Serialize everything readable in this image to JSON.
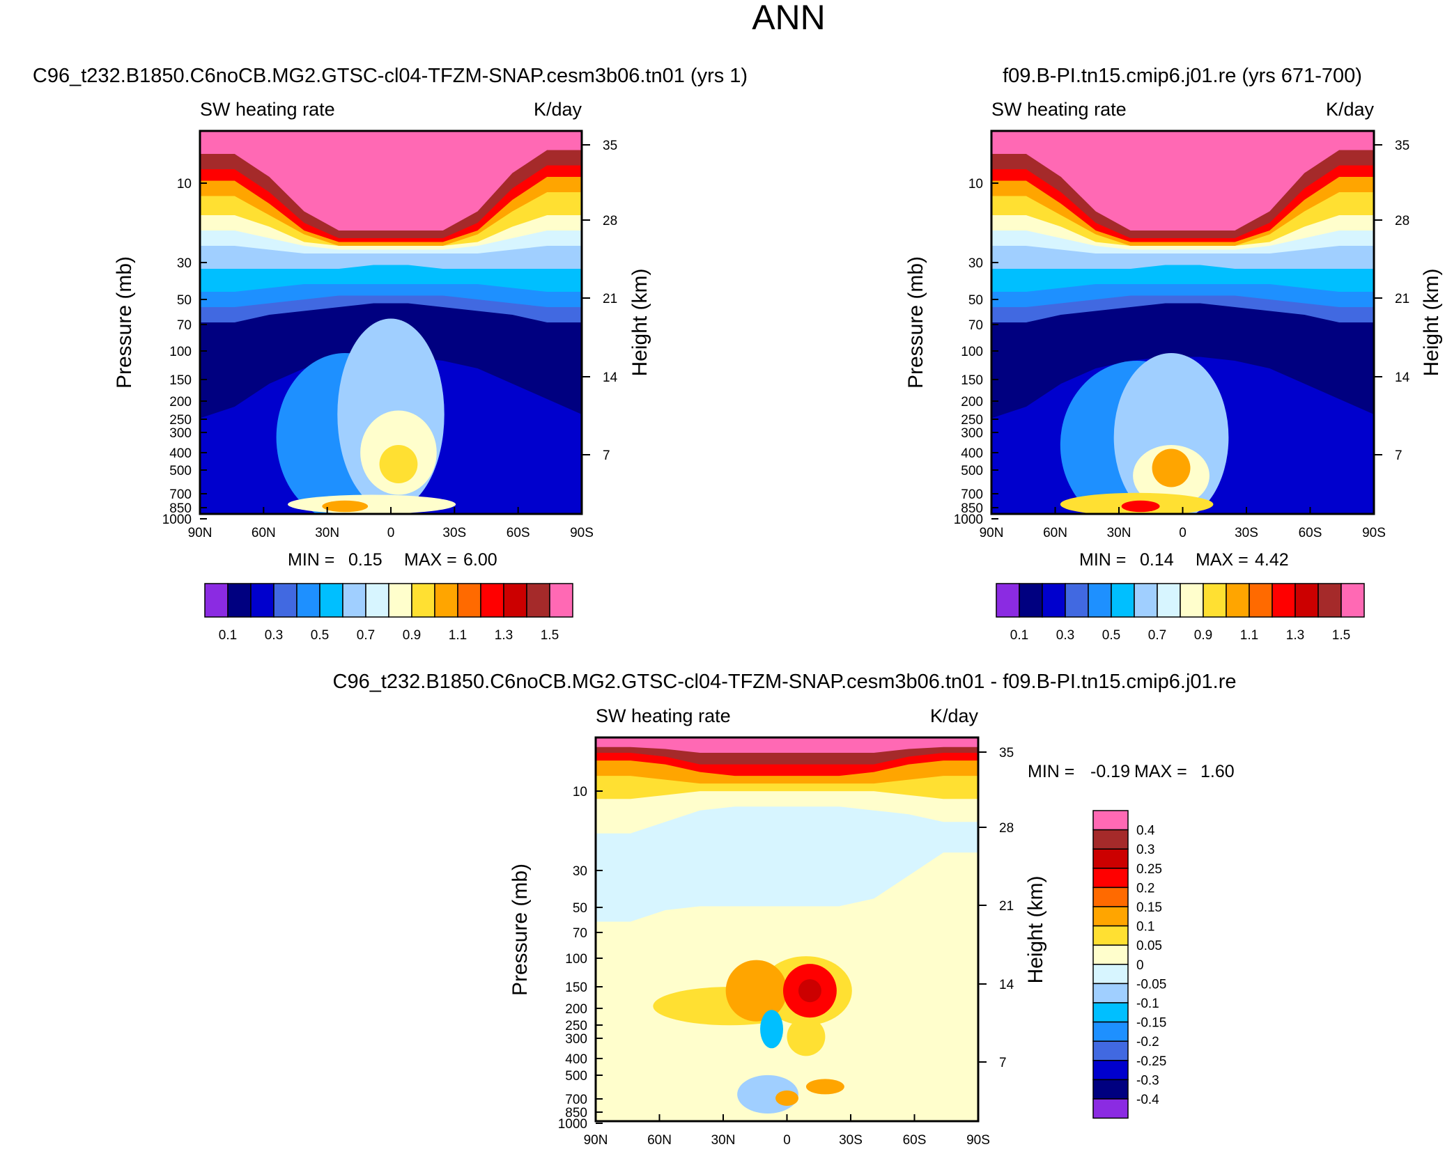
{
  "figure": {
    "title": "ANN"
  },
  "palettes": {
    "abs": [
      "#8b2be2",
      "#000080",
      "#0000cd",
      "#4169e1",
      "#1e90ff",
      "#00bfff",
      "#a0cfff",
      "#d7f5ff",
      "#fffecc",
      "#ffe032",
      "#ffa500",
      "#ff6a00",
      "#ff0000",
      "#cc0000",
      "#a52a2a",
      "#ff69b4"
    ],
    "diff": [
      "#8b2be2",
      "#000080",
      "#0000cd",
      "#4169e1",
      "#1e90ff",
      "#00bfff",
      "#a0cfff",
      "#d7f5ff",
      "#fffecc",
      "#ffe032",
      "#ffa500",
      "#ff6a00",
      "#ff0000",
      "#cc0000",
      "#a52a2a",
      "#ff69b4"
    ]
  },
  "chart_data": [
    {
      "type": "contour",
      "id": "p1",
      "title": "C96_t232.B1850.C6noCB.MG2.GTSC-cl04-TFZM-SNAP.cesm3b06.tn01 (yrs 1)",
      "left_label": "SW heating rate",
      "right_label": "K/day",
      "xlabel": "",
      "ylabel": "Pressure (mb)",
      "y2label": "Height (km)",
      "x_ticks": [
        "90N",
        "60N",
        "30N",
        "0",
        "30S",
        "60S",
        "90S"
      ],
      "y_ticks": [
        "10",
        "30",
        "50",
        "70",
        "100",
        "150",
        "200",
        "250",
        "300",
        "400",
        "500",
        "700",
        "850",
        "1000"
      ],
      "y2_ticks": [
        "35",
        "28",
        "21",
        "14",
        "7"
      ],
      "min_label": "MIN =",
      "min_value": "0.15",
      "max_label": "MAX =",
      "max_value": "6.00",
      "colorbar_labels": [
        "0.1",
        "0.3",
        "0.5",
        "0.7",
        "0.9",
        "1.1",
        "1.3",
        "1.5"
      ]
    },
    {
      "type": "contour",
      "id": "p2",
      "title": "f09.B-PI.tn15.cmip6.j01.re (yrs 671-700)",
      "left_label": "SW heating rate",
      "right_label": "K/day",
      "xlabel": "",
      "ylabel": "Pressure (mb)",
      "y2label": "Height (km)",
      "x_ticks": [
        "90N",
        "60N",
        "30N",
        "0",
        "30S",
        "60S",
        "90S"
      ],
      "y_ticks": [
        "10",
        "30",
        "50",
        "70",
        "100",
        "150",
        "200",
        "250",
        "300",
        "400",
        "500",
        "700",
        "850",
        "1000"
      ],
      "y2_ticks": [
        "35",
        "28",
        "21",
        "14",
        "7"
      ],
      "min_label": "MIN =",
      "min_value": "0.14",
      "max_label": "MAX =",
      "max_value": "4.42",
      "colorbar_labels": [
        "0.1",
        "0.3",
        "0.5",
        "0.7",
        "0.9",
        "1.1",
        "1.3",
        "1.5"
      ]
    },
    {
      "type": "contour",
      "id": "p3",
      "title": "C96_t232.B1850.C6noCB.MG2.GTSC-cl04-TFZM-SNAP.cesm3b06.tn01 - f09.B-PI.tn15.cmip6.j01.re",
      "left_label": "SW heating rate",
      "right_label": "K/day",
      "xlabel": "",
      "ylabel": "Pressure (mb)",
      "y2label": "Height (km)",
      "x_ticks": [
        "90N",
        "60N",
        "30N",
        "0",
        "30S",
        "60S",
        "90S"
      ],
      "y_ticks": [
        "10",
        "30",
        "50",
        "70",
        "100",
        "150",
        "200",
        "250",
        "300",
        "400",
        "500",
        "700",
        "850",
        "1000"
      ],
      "y2_ticks": [
        "35",
        "28",
        "21",
        "14",
        "7"
      ],
      "min_label": "MIN =",
      "min_value": "-0.19",
      "max_label": "MAX =",
      "max_value": "1.60",
      "colorbar_labels": [
        "0.4",
        "0.3",
        "0.25",
        "0.2",
        "0.15",
        "0.1",
        "0.05",
        "0",
        "-0.05",
        "-0.1",
        "-0.15",
        "-0.2",
        "-0.25",
        "-0.3",
        "-0.4"
      ]
    }
  ]
}
